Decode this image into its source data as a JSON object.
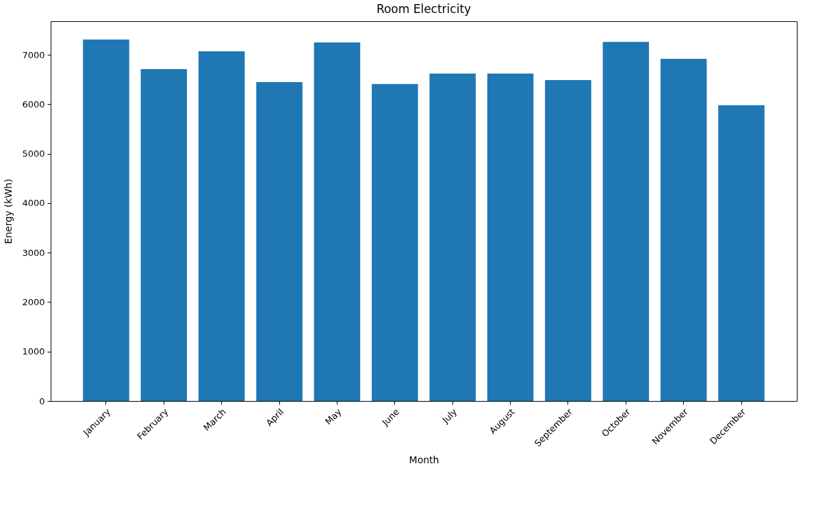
{
  "chart_data": {
    "type": "bar",
    "title": "Room Electricity",
    "xlabel": "Month",
    "ylabel": "Energy (kWh)",
    "categories": [
      "January",
      "February",
      "March",
      "April",
      "May",
      "June",
      "July",
      "August",
      "September",
      "October",
      "November",
      "December"
    ],
    "values": [
      7310,
      6710,
      7070,
      6450,
      7250,
      6410,
      6620,
      6620,
      6490,
      7260,
      6920,
      5980
    ],
    "color": "#1f77b4",
    "ylim": [
      0,
      7680
    ],
    "yticks": [
      0,
      1000,
      2000,
      3000,
      4000,
      5000,
      6000,
      7000
    ],
    "grid": false
  }
}
